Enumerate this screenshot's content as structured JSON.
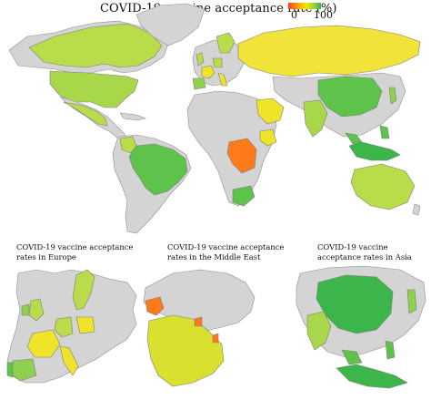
{
  "title": "COVID-19 vaccine acceptance rate (%)",
  "legend": {
    "min": "0",
    "max": "100",
    "colors": [
      "#ff3b1f",
      "#ffb000",
      "#f2e600",
      "#9bd43a",
      "#2fb34a"
    ]
  },
  "insets": {
    "europe": "COVID-19 vaccine acceptance rates in Europe",
    "middle_east": "COVID-19 vaccine acceptance rates in the Middle East",
    "asia": "COVID-19 vaccine acceptance rates in Asia"
  },
  "colors": {
    "no_data": "#d4d4d4",
    "border": "#8f8f8f",
    "high": "#3cb64a",
    "upper_mid": "#8fd14f",
    "mid": "#b8dc4a",
    "lower_mid": "#efe42a",
    "low": "#ffa51f",
    "lowest": "#ff7a1a"
  }
}
